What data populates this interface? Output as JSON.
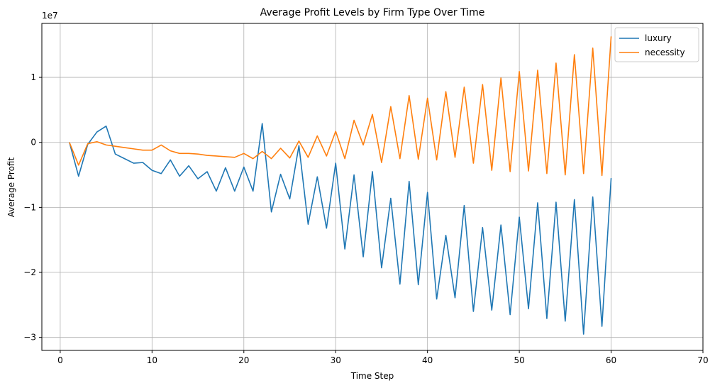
{
  "chart_data": {
    "type": "line",
    "title": "Average Profit Levels by Firm Type Over Time",
    "xlabel": "Time Step",
    "ylabel": "Average Profit",
    "y_offset_label": "1e7",
    "xlim": [
      -2,
      70
    ],
    "ylim": [
      -3.2,
      1.83
    ],
    "x_ticks": [
      0,
      10,
      20,
      30,
      40,
      50,
      60,
      70
    ],
    "y_ticks": [
      -3,
      -2,
      -1,
      0,
      1
    ],
    "y_tick_labels": [
      "−3",
      "−2",
      "−1",
      "0",
      "1"
    ],
    "grid": true,
    "legend_position": "top-right",
    "series": [
      {
        "name": "luxury",
        "color": "#1f77b4",
        "x": [
          1,
          2,
          3,
          4,
          5,
          6,
          7,
          8,
          9,
          10,
          11,
          12,
          13,
          14,
          15,
          16,
          17,
          18,
          19,
          20,
          21,
          22,
          23,
          24,
          25,
          26,
          27,
          28,
          29,
          30,
          31,
          32,
          33,
          34,
          35,
          36,
          37,
          38,
          39,
          40,
          41,
          42,
          43,
          44,
          45,
          46,
          47,
          48,
          49,
          50,
          51,
          52,
          53,
          54,
          55,
          56,
          57,
          58,
          59,
          60
        ],
        "values": [
          0.0,
          -0.52,
          -0.03,
          0.16,
          0.25,
          -0.18,
          -0.25,
          -0.32,
          -0.31,
          -0.43,
          -0.48,
          -0.27,
          -0.52,
          -0.36,
          -0.56,
          -0.45,
          -0.75,
          -0.39,
          -0.75,
          -0.38,
          -0.75,
          0.29,
          -1.07,
          -0.49,
          -0.87,
          -0.05,
          -1.26,
          -0.53,
          -1.32,
          -0.32,
          -1.64,
          -0.5,
          -1.76,
          -0.45,
          -1.93,
          -0.86,
          -2.18,
          -0.6,
          -2.19,
          -0.77,
          -2.41,
          -1.43,
          -2.39,
          -0.97,
          -2.6,
          -1.31,
          -2.58,
          -1.27,
          -2.65,
          -1.15,
          -2.56,
          -0.93,
          -2.71,
          -0.92,
          -2.75,
          -0.88,
          -2.95,
          -0.84,
          -2.83,
          -0.55
        ]
      },
      {
        "name": "necessity",
        "color": "#ff7f0e",
        "x": [
          1,
          2,
          3,
          4,
          5,
          6,
          7,
          8,
          9,
          10,
          11,
          12,
          13,
          14,
          15,
          16,
          17,
          18,
          19,
          20,
          21,
          22,
          23,
          24,
          25,
          26,
          27,
          28,
          29,
          30,
          31,
          32,
          33,
          34,
          35,
          36,
          37,
          38,
          39,
          40,
          41,
          42,
          43,
          44,
          45,
          46,
          47,
          48,
          49,
          50,
          51,
          52,
          53,
          54,
          55,
          56,
          57,
          58,
          59,
          60
        ],
        "values": [
          0.0,
          -0.35,
          -0.02,
          0.01,
          -0.04,
          -0.06,
          -0.08,
          -0.1,
          -0.12,
          -0.12,
          -0.04,
          -0.13,
          -0.17,
          -0.17,
          -0.18,
          -0.2,
          -0.21,
          -0.22,
          -0.23,
          -0.17,
          -0.25,
          -0.14,
          -0.25,
          -0.09,
          -0.24,
          0.02,
          -0.23,
          0.1,
          -0.21,
          0.17,
          -0.25,
          0.34,
          -0.04,
          0.43,
          -0.31,
          0.55,
          -0.25,
          0.72,
          -0.26,
          0.68,
          -0.27,
          0.78,
          -0.23,
          0.85,
          -0.32,
          0.89,
          -0.43,
          0.99,
          -0.45,
          1.09,
          -0.44,
          1.11,
          -0.48,
          1.22,
          -0.5,
          1.35,
          -0.48,
          1.45,
          -0.51,
          1.63
        ]
      }
    ]
  }
}
